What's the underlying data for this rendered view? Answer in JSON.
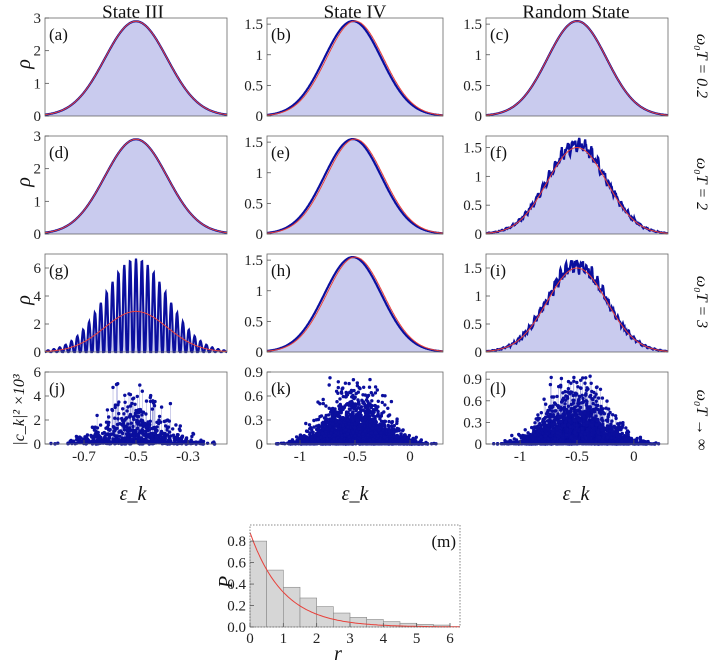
{
  "column_titles": [
    "State III",
    "State IV",
    "Random State"
  ],
  "row_labels": [
    "ω₀T = 0.2",
    "ω₀T = 2",
    "ω₀T = 3",
    "ω₀T → ∞"
  ],
  "y_label_rho": "ρ",
  "y_label_ck": "|c_k|² ×10³",
  "x_label_eps": "ε_k",
  "colors": {
    "data": "#0b0f9e",
    "fit": "#e8403a",
    "fill": "#c9cbee",
    "hist": "#d6d6d6"
  },
  "chart_data": [
    {
      "panel": "(a)",
      "type": "area",
      "xlim": [
        -0.85,
        -0.15
      ],
      "ylim": [
        0,
        3
      ],
      "yticks": [
        "0",
        "1",
        "2",
        "3"
      ],
      "series": [
        {
          "center": -0.5,
          "sigma": 0.12,
          "peak": 2.9
        }
      ],
      "fit": {
        "center": -0.5,
        "sigma": 0.12,
        "peak": 2.9
      }
    },
    {
      "panel": "(b)",
      "type": "area",
      "xlim": [
        -1.3,
        0.3
      ],
      "ylim": [
        0,
        1.6
      ],
      "yticks": [
        "0",
        "0.5",
        "1",
        "1.5"
      ],
      "series": [
        {
          "center": -0.52,
          "sigma": 0.26,
          "peak": 1.55
        }
      ],
      "fit": {
        "center": -0.5,
        "sigma": 0.26,
        "peak": 1.55
      }
    },
    {
      "panel": "(c)",
      "type": "area",
      "xlim": [
        -1.3,
        0.3
      ],
      "ylim": [
        0,
        1.6
      ],
      "yticks": [
        "0",
        "0.5",
        "1",
        "1.5"
      ],
      "series": [
        {
          "center": -0.5,
          "sigma": 0.26,
          "peak": 1.55
        }
      ],
      "fit": {
        "center": -0.5,
        "sigma": 0.26,
        "peak": 1.55
      }
    },
    {
      "panel": "(d)",
      "type": "area",
      "xlim": [
        -0.85,
        -0.15
      ],
      "ylim": [
        0,
        3
      ],
      "yticks": [
        "0",
        "1",
        "2",
        "3"
      ],
      "series": [
        {
          "center": -0.5,
          "sigma": 0.12,
          "peak": 2.9
        }
      ],
      "fit": {
        "center": -0.5,
        "sigma": 0.12,
        "peak": 2.9
      }
    },
    {
      "panel": "(e)",
      "type": "area",
      "xlim": [
        -1.3,
        0.3
      ],
      "ylim": [
        0,
        1.6
      ],
      "yticks": [
        "0",
        "0.5",
        "1",
        "1.5"
      ],
      "series": [
        {
          "center": -0.52,
          "sigma": 0.26,
          "peak": 1.55
        }
      ],
      "fit": {
        "center": -0.5,
        "sigma": 0.26,
        "peak": 1.55
      }
    },
    {
      "panel": "(f)",
      "type": "area",
      "xlim": [
        -1.3,
        0.3
      ],
      "ylim": [
        0,
        1.7
      ],
      "yticks": [
        "0",
        "0.5",
        "1",
        "1.5"
      ],
      "series": [
        {
          "center": -0.5,
          "sigma": 0.26,
          "peak": 1.55,
          "noise": 0.12,
          "freq": 38
        }
      ],
      "fit": {
        "center": -0.5,
        "sigma": 0.26,
        "peak": 1.5
      }
    },
    {
      "panel": "(g)",
      "type": "area",
      "xlim": [
        -0.85,
        -0.15
      ],
      "ylim": [
        0,
        7
      ],
      "yticks": [
        "0",
        "2",
        "4",
        "6"
      ],
      "series": [
        {
          "center": -0.5,
          "sigma": 0.12,
          "peak": 2.9,
          "osc": 31
        }
      ],
      "fit": {
        "center": -0.5,
        "sigma": 0.12,
        "peak": 2.9
      }
    },
    {
      "panel": "(h)",
      "type": "area",
      "xlim": [
        -1.3,
        0.3
      ],
      "ylim": [
        0,
        1.6
      ],
      "yticks": [
        "0",
        "0.5",
        "1",
        "1.5"
      ],
      "series": [
        {
          "center": -0.52,
          "sigma": 0.26,
          "peak": 1.55
        }
      ],
      "fit": {
        "center": -0.5,
        "sigma": 0.26,
        "peak": 1.55
      }
    },
    {
      "panel": "(i)",
      "type": "area",
      "xlim": [
        -1.3,
        0.3
      ],
      "ylim": [
        0,
        1.75
      ],
      "yticks": [
        "0",
        "0.5",
        "1",
        "1.5"
      ],
      "series": [
        {
          "center": -0.5,
          "sigma": 0.26,
          "peak": 1.55,
          "noise": 0.13,
          "freq": 44
        }
      ],
      "fit": {
        "center": -0.5,
        "sigma": 0.26,
        "peak": 1.5
      }
    },
    {
      "panel": "(j)",
      "type": "scatter",
      "xlim": [
        -0.85,
        -0.15
      ],
      "ylim": [
        0,
        6
      ],
      "yticks": [
        "0",
        "2",
        "4",
        "6"
      ],
      "xticks": [
        {
          "v": -0.7,
          "t": "-0.7"
        },
        {
          "v": -0.5,
          "t": "-0.5"
        },
        {
          "v": -0.3,
          "t": "-0.3"
        }
      ],
      "center": -0.5,
      "sigma": 0.12,
      "max": 5.2,
      "count": 700,
      "lines": true
    },
    {
      "panel": "(k)",
      "type": "scatter",
      "xlim": [
        -1.3,
        0.3
      ],
      "ylim": [
        0,
        0.9
      ],
      "yticks": [
        "0",
        "0.3",
        "0.6",
        "0.9"
      ],
      "xticks": [
        {
          "v": -1,
          "t": "-1"
        },
        {
          "v": -0.5,
          "t": "-0.5"
        },
        {
          "v": 0,
          "t": "0"
        }
      ],
      "center": -0.5,
      "sigma": 0.26,
      "max": 0.85,
      "count": 2600
    },
    {
      "panel": "(l)",
      "type": "scatter",
      "xlim": [
        -1.3,
        0.3
      ],
      "ylim": [
        0,
        1.0
      ],
      "yticks": [
        "0",
        "0.3",
        "0.6",
        "0.9"
      ],
      "xticks": [
        {
          "v": -1,
          "t": "-1"
        },
        {
          "v": -0.5,
          "t": "-0.5"
        },
        {
          "v": 0,
          "t": "0"
        }
      ],
      "center": -0.5,
      "sigma": 0.26,
      "max": 0.95,
      "count": 2600,
      "lines": true
    },
    {
      "panel": "(m)",
      "type": "bar",
      "xlabel": "r",
      "ylabel": "P",
      "xlim": [
        0,
        6.3
      ],
      "ylim": [
        0,
        0.95
      ],
      "bin_width": 0.5,
      "values": [
        0.8,
        0.53,
        0.37,
        0.27,
        0.19,
        0.13,
        0.09,
        0.07,
        0.05,
        0.035,
        0.025,
        0.018
      ],
      "fit": "exp(-r)",
      "xticks": [
        "0",
        "1",
        "2",
        "3",
        "4",
        "5",
        "6"
      ],
      "yticks": [
        "0.0",
        "0.2",
        "0.4",
        "0.6",
        "0.8"
      ]
    }
  ]
}
